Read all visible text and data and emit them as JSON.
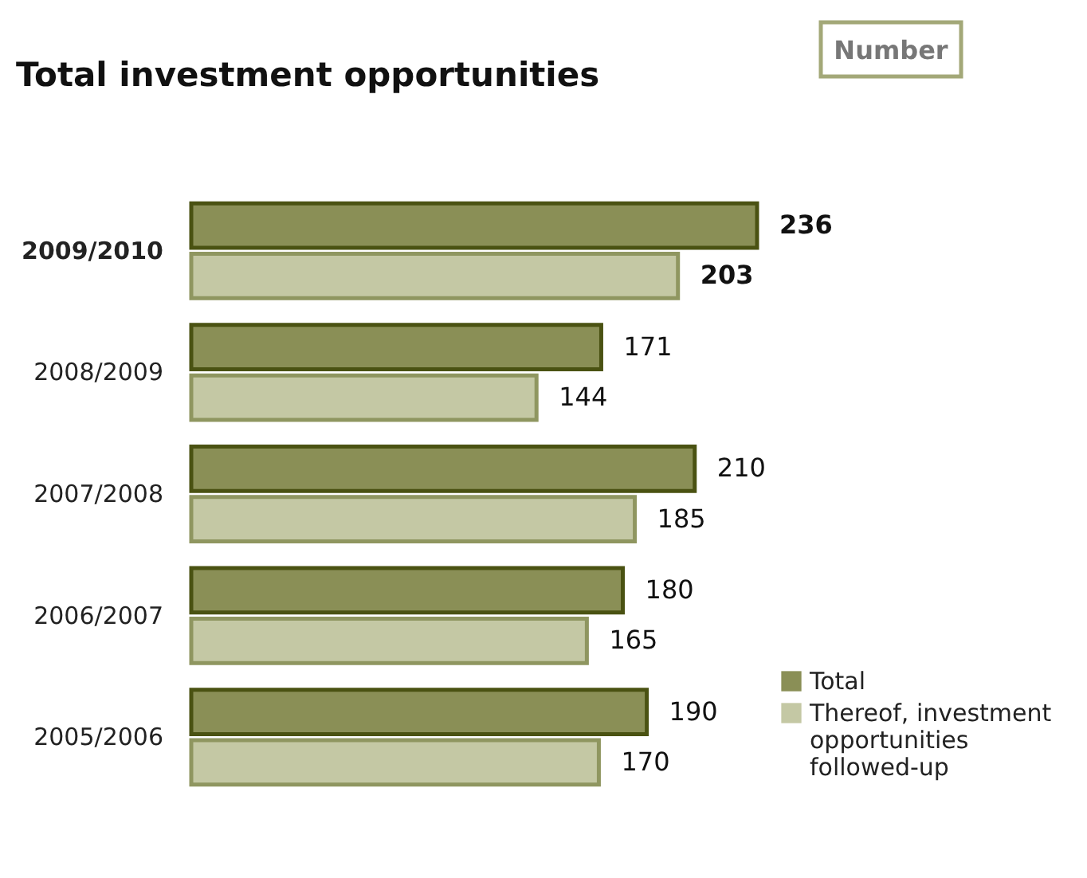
{
  "chart_data": {
    "type": "bar",
    "orientation": "horizontal",
    "title": "Total investment opportunities",
    "annotations": [
      "Number"
    ],
    "categories": [
      "2009/2010",
      "2008/2009",
      "2007/2008",
      "2006/2007",
      "2005/2006"
    ],
    "series": [
      {
        "name": "Total",
        "color": "#8a8f56",
        "values": [
          236,
          171,
          210,
          180,
          190
        ]
      },
      {
        "name": "Thereof, investment opportunities followed-up",
        "color": "#c4c8a4",
        "values": [
          203,
          144,
          185,
          165,
          170
        ]
      }
    ],
    "data_labels": true,
    "grid": false,
    "legend": "bottom right"
  }
}
